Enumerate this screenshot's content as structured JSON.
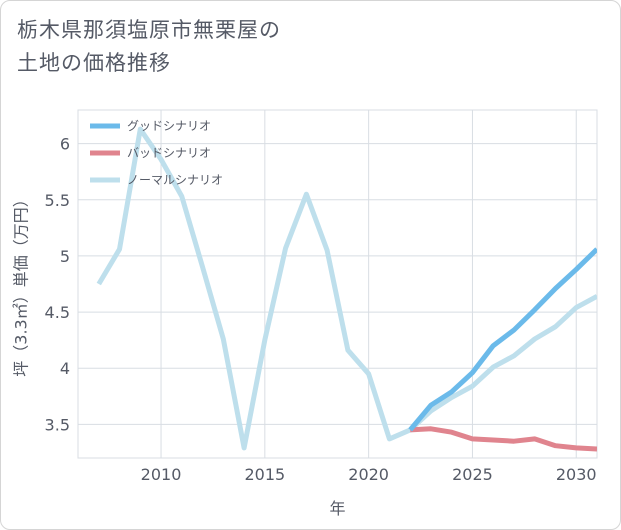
{
  "page": {
    "title_line1": "栃木県那須塩原市無栗屋の",
    "title_line2": "土地の価格推移"
  },
  "chart_data": {
    "type": "line",
    "title": "栃木県那須塩原市無栗屋の土地の価格推移",
    "xlabel": "年",
    "ylabel": "坪（3.3㎡）単価（万円）",
    "xlim": [
      2006,
      2031
    ],
    "ylim": [
      3.2,
      6.3
    ],
    "xticks": [
      2010,
      2015,
      2020,
      2025,
      2030
    ],
    "yticks": [
      3.5,
      4,
      4.5,
      5,
      5.5,
      6
    ],
    "grid": true,
    "legend_position": "top-left",
    "series": [
      {
        "name": "ノーマルシナリオ",
        "color": "#bedfec",
        "x": [
          2007,
          2008,
          2009,
          2010,
          2011,
          2012,
          2013,
          2014,
          2015,
          2016,
          2017,
          2018,
          2019,
          2020,
          2021,
          2022,
          2023,
          2024,
          2025,
          2026,
          2027,
          2028,
          2029,
          2030,
          2031
        ],
        "values": [
          4.75,
          5.06,
          6.13,
          5.86,
          5.53,
          4.9,
          4.26,
          3.29,
          4.25,
          5.07,
          5.55,
          5.05,
          4.16,
          3.95,
          3.37,
          3.45,
          3.62,
          3.74,
          3.84,
          4.01,
          4.11,
          4.26,
          4.37,
          4.54,
          4.64
        ]
      },
      {
        "name": "バッドシナリオ",
        "color": "#e0848e",
        "x": [
          2022,
          2023,
          2024,
          2025,
          2026,
          2027,
          2028,
          2029,
          2030,
          2031
        ],
        "values": [
          3.45,
          3.46,
          3.43,
          3.37,
          3.36,
          3.35,
          3.37,
          3.31,
          3.29,
          3.28
        ]
      },
      {
        "name": "グッドシナリオ",
        "color": "#6bbaea",
        "x": [
          2022,
          2023,
          2024,
          2025,
          2026,
          2027,
          2028,
          2029,
          2030,
          2031
        ],
        "values": [
          3.45,
          3.67,
          3.79,
          3.96,
          4.2,
          4.34,
          4.52,
          4.71,
          4.88,
          5.06
        ]
      }
    ],
    "legend": [
      {
        "name": "グッドシナリオ",
        "color": "#6bbaea"
      },
      {
        "name": "バッドシナリオ",
        "color": "#e0848e"
      },
      {
        "name": "ノーマルシナリオ",
        "color": "#bedfec"
      }
    ]
  }
}
